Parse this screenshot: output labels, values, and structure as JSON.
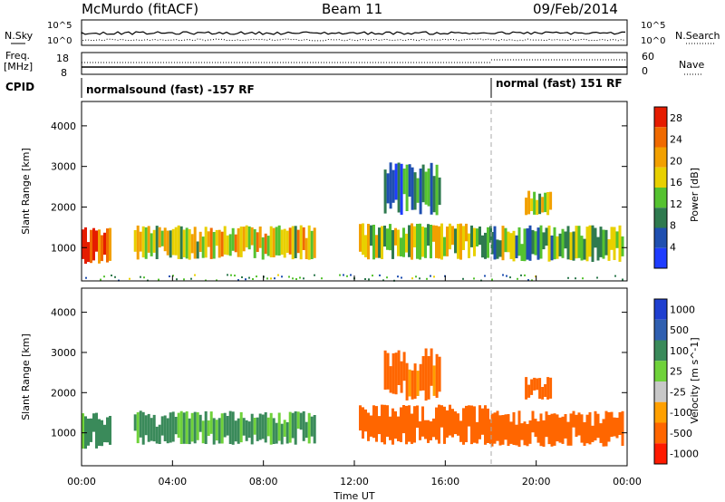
{
  "header": {
    "station": "McMurdo (fitACF)",
    "beam": "Beam 11",
    "date": "09/Feb/2014"
  },
  "noise_panel": {
    "left_label": "N.Sky",
    "right_label": "N.Search",
    "left_ticks": [
      "10^5",
      "10^0"
    ],
    "right_ticks": [
      "10^5",
      "10^0"
    ]
  },
  "freq_panel": {
    "left_label_1": "Freq.",
    "left_label_2": "[MHz]",
    "left_ticks": [
      "18",
      "8"
    ],
    "right_label": "Nave",
    "right_ticks": [
      "60",
      "0"
    ]
  },
  "cpid_panel": {
    "label": "CPID",
    "modes": [
      {
        "text": "normalsound (fast) -157 RF",
        "start_hour": 0
      },
      {
        "text": "normal (fast) 151 RF",
        "start_hour": 18
      }
    ]
  },
  "colors": {
    "power_scale": [
      "#1e3cff",
      "#1f4fb0",
      "#2f7a4f",
      "#55c230",
      "#e8d000",
      "#f2a000",
      "#f06a00",
      "#e51c00"
    ],
    "velocity_scale": [
      "#ff1a00",
      "#ff6600",
      "#ffa000",
      "#c8c8c8",
      "#6fd23a",
      "#3a8a5a",
      "#2f5fb0",
      "#1f3fd0"
    ]
  },
  "chart_data": [
    {
      "type": "heatmap",
      "title": "",
      "xlabel": "Time UT",
      "ylabel": "Slant Range [km]",
      "x_ticks": [
        "00:00",
        "04:00",
        "08:00",
        "12:00",
        "16:00",
        "20:00",
        "00:00"
      ],
      "xlim_hours": [
        0,
        24
      ],
      "y_ticks": [
        1000,
        2000,
        3000,
        4000
      ],
      "ylim": [
        180,
        4600
      ],
      "colorbar": {
        "label": "Power [dB]",
        "ticks": [
          4,
          8,
          12,
          16,
          20,
          24,
          28
        ],
        "range": [
          0,
          30
        ]
      },
      "echo_regions": [
        {
          "x": [
            0.0,
            1.3
          ],
          "y": [
            600,
            1500
          ],
          "level": 26
        },
        {
          "x": [
            2.3,
            10.2
          ],
          "y": [
            700,
            1550
          ],
          "level": 17
        },
        {
          "x": [
            12.2,
            18.0
          ],
          "y": [
            700,
            1600
          ],
          "level": 15
        },
        {
          "x": [
            13.3,
            15.7
          ],
          "y": [
            1800,
            3100
          ],
          "level": 8
        },
        {
          "x": [
            18.0,
            23.8
          ],
          "y": [
            650,
            1550
          ],
          "level": 13
        },
        {
          "x": [
            19.5,
            20.6
          ],
          "y": [
            1800,
            2400
          ],
          "level": 14
        }
      ],
      "scatter_band": {
        "y": [
          200,
          350
        ],
        "level": 6
      }
    },
    {
      "type": "heatmap",
      "title": "",
      "xlabel": "Time UT",
      "ylabel": "Slant Range [km]",
      "x_ticks": [
        "00:00",
        "04:00",
        "08:00",
        "12:00",
        "16:00",
        "20:00",
        "00:00"
      ],
      "xlim_hours": [
        0,
        24
      ],
      "y_ticks": [
        1000,
        2000,
        3000,
        4000
      ],
      "ylim": [
        180,
        4600
      ],
      "colorbar": {
        "label": "Velocity [m s^-1]",
        "ticks": [
          "1000",
          "500",
          "100",
          "25",
          "-25",
          "-100",
          "-500",
          "-1000"
        ]
      },
      "echo_regions": [
        {
          "x": [
            0.0,
            1.3
          ],
          "y": [
            600,
            1500
          ],
          "velocity": 200
        },
        {
          "x": [
            2.3,
            10.2
          ],
          "y": [
            700,
            1550
          ],
          "velocity": 150
        },
        {
          "x": [
            12.2,
            18.0
          ],
          "y": [
            700,
            1700
          ],
          "velocity": -300
        },
        {
          "x": [
            13.3,
            15.7
          ],
          "y": [
            1800,
            3100
          ],
          "velocity": -200
        },
        {
          "x": [
            18.0,
            23.8
          ],
          "y": [
            650,
            1550
          ],
          "velocity": -250
        },
        {
          "x": [
            19.5,
            20.6
          ],
          "y": [
            1800,
            2400
          ],
          "velocity": -300
        }
      ]
    }
  ]
}
